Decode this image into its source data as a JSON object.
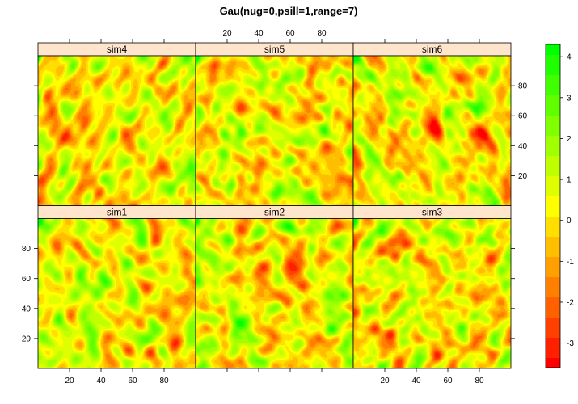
{
  "chart_data": {
    "type": "heatmap",
    "title": "Gau(nug=0,psill=1,range=7)",
    "panels_top_row": [
      "sim4",
      "sim5",
      "sim6"
    ],
    "panels_bottom_row": [
      "sim1",
      "sim2",
      "sim3"
    ],
    "xlim": [
      0,
      100
    ],
    "ylim": [
      0,
      100
    ],
    "x_ticks": [
      20,
      40,
      60,
      80
    ],
    "y_ticks": [
      20,
      40,
      60,
      80
    ],
    "colorbar": {
      "range": [
        -3.6,
        4.3
      ],
      "ticks": [
        -3,
        -2,
        -1,
        0,
        1,
        2,
        3,
        4
      ],
      "palette": [
        "#ff0000",
        "#ff4000",
        "#ff8000",
        "#ffbf00",
        "#ffff00",
        "#bfff00",
        "#80ff00",
        "#40ff00",
        "#00ff00"
      ]
    },
    "strip_color": "#ffe5cc"
  }
}
